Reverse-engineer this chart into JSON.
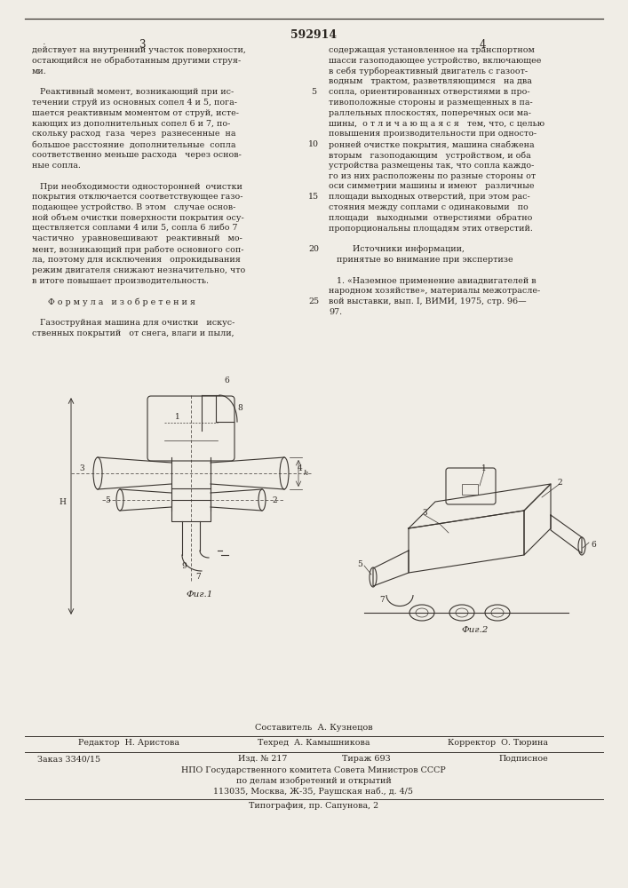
{
  "patent_number": "592914",
  "page_left": "3",
  "page_right": "4",
  "bg_color": "#f0ede6",
  "text_color": "#2a2520",
  "col_left_text": [
    "действует на внутренний участок поверхности,",
    "остающийся не обработанным другими струя-",
    "ми.",
    "",
    "   Реактивный момент, возникающий при ис-",
    "течении струй из основных сопел 4 и 5, пога-",
    "шается реактивным моментом от струй, исте-",
    "кающих из дополнительных сопел 6 и 7, по-",
    "скольку расход  газа  через  разнесенные  на",
    "большое расстояние  дополнительные  сопла",
    "соответственно меньше расхода   через основ-",
    "ные сопла.",
    "",
    "   При необходимости односторонней  очистки",
    "покрытия отключается соответствующее газо-",
    "подающее устройство. В этом   случае основ-",
    "ной объем очистки поверхности покрытия осу-",
    "ществляется соплами 4 или 5, сопла 6 либо 7",
    "частично   уравновешивают   реактивный   мо-",
    "мент, возникающий при работе основного соп-",
    "ла, поэтому для исключения   опрокидывания",
    "режим двигателя снижают незначительно, что",
    "в итоге повышает производительность.",
    "",
    "      Ф о р м у л а   и з о б р е т е н и я",
    "",
    "   Газоструйная машина для очистки   искус-",
    "ственных покрытий   от снега, влаги и пыли,"
  ],
  "col_right_text": [
    "содержащая установленное на транспортном",
    "шасси газоподающее устройство, включающее",
    "в себя турбореактивный двигатель с газоот-",
    "водным   трактом, разветвляющимся   на два",
    "сопла, ориентированных отверстиями в про-",
    "тивоположные стороны и размещенных в па-",
    "раллельных плоскостях, поперечных оси ма-",
    "шины,  о т л и ч а ю щ а я с я   тем, что, с целью",
    "повышения производительности при односто-",
    "ронней очистке покрытия, машина снабжена",
    "вторым   газоподающим   устройством, и оба",
    "устройства размещены так, что сопла каждо-",
    "го из них расположены по разные стороны от",
    "оси симметрии машины и имеют   различные",
    "площади выходных отверстий, при этом рас-",
    "стояния между соплами с одинаковыми   по",
    "площади   выходными  отверстиями  обратно",
    "пропорциональны площадям этих отверстий.",
    "",
    "         Источники информации,",
    "   принятые во внимание при экспертизе",
    "",
    "   1. «Наземное применение авиадвигателей в",
    "народном хозяйстве», материалы межотрасле-",
    "вой выставки, вып. I, ВИМИ, 1975, стр. 96—",
    "97."
  ],
  "line_numbers": [
    5,
    10,
    15,
    20,
    25
  ],
  "footer_composer": "Составитель  А. Кузнецов",
  "footer_editor": "Редактор  Н. Аристова",
  "footer_techred": "Техред  А. Камышникова",
  "footer_corrector": "Корректор  О. Тюрина",
  "footer_order": "Заказ 3340/15",
  "footer_izd": "Изд. № 217",
  "footer_tirazh": "Тираж 693",
  "footer_podp": "Подписное",
  "footer_npo": "НПО Государственного комитета Совета Министров СССР",
  "footer_dela": "по делам изобретений и открытий",
  "footer_addr": "113035, Москва, Ж-35, Раушская наб., д. 4/5",
  "footer_tipo": "Типография, пр. Сапунова, 2"
}
